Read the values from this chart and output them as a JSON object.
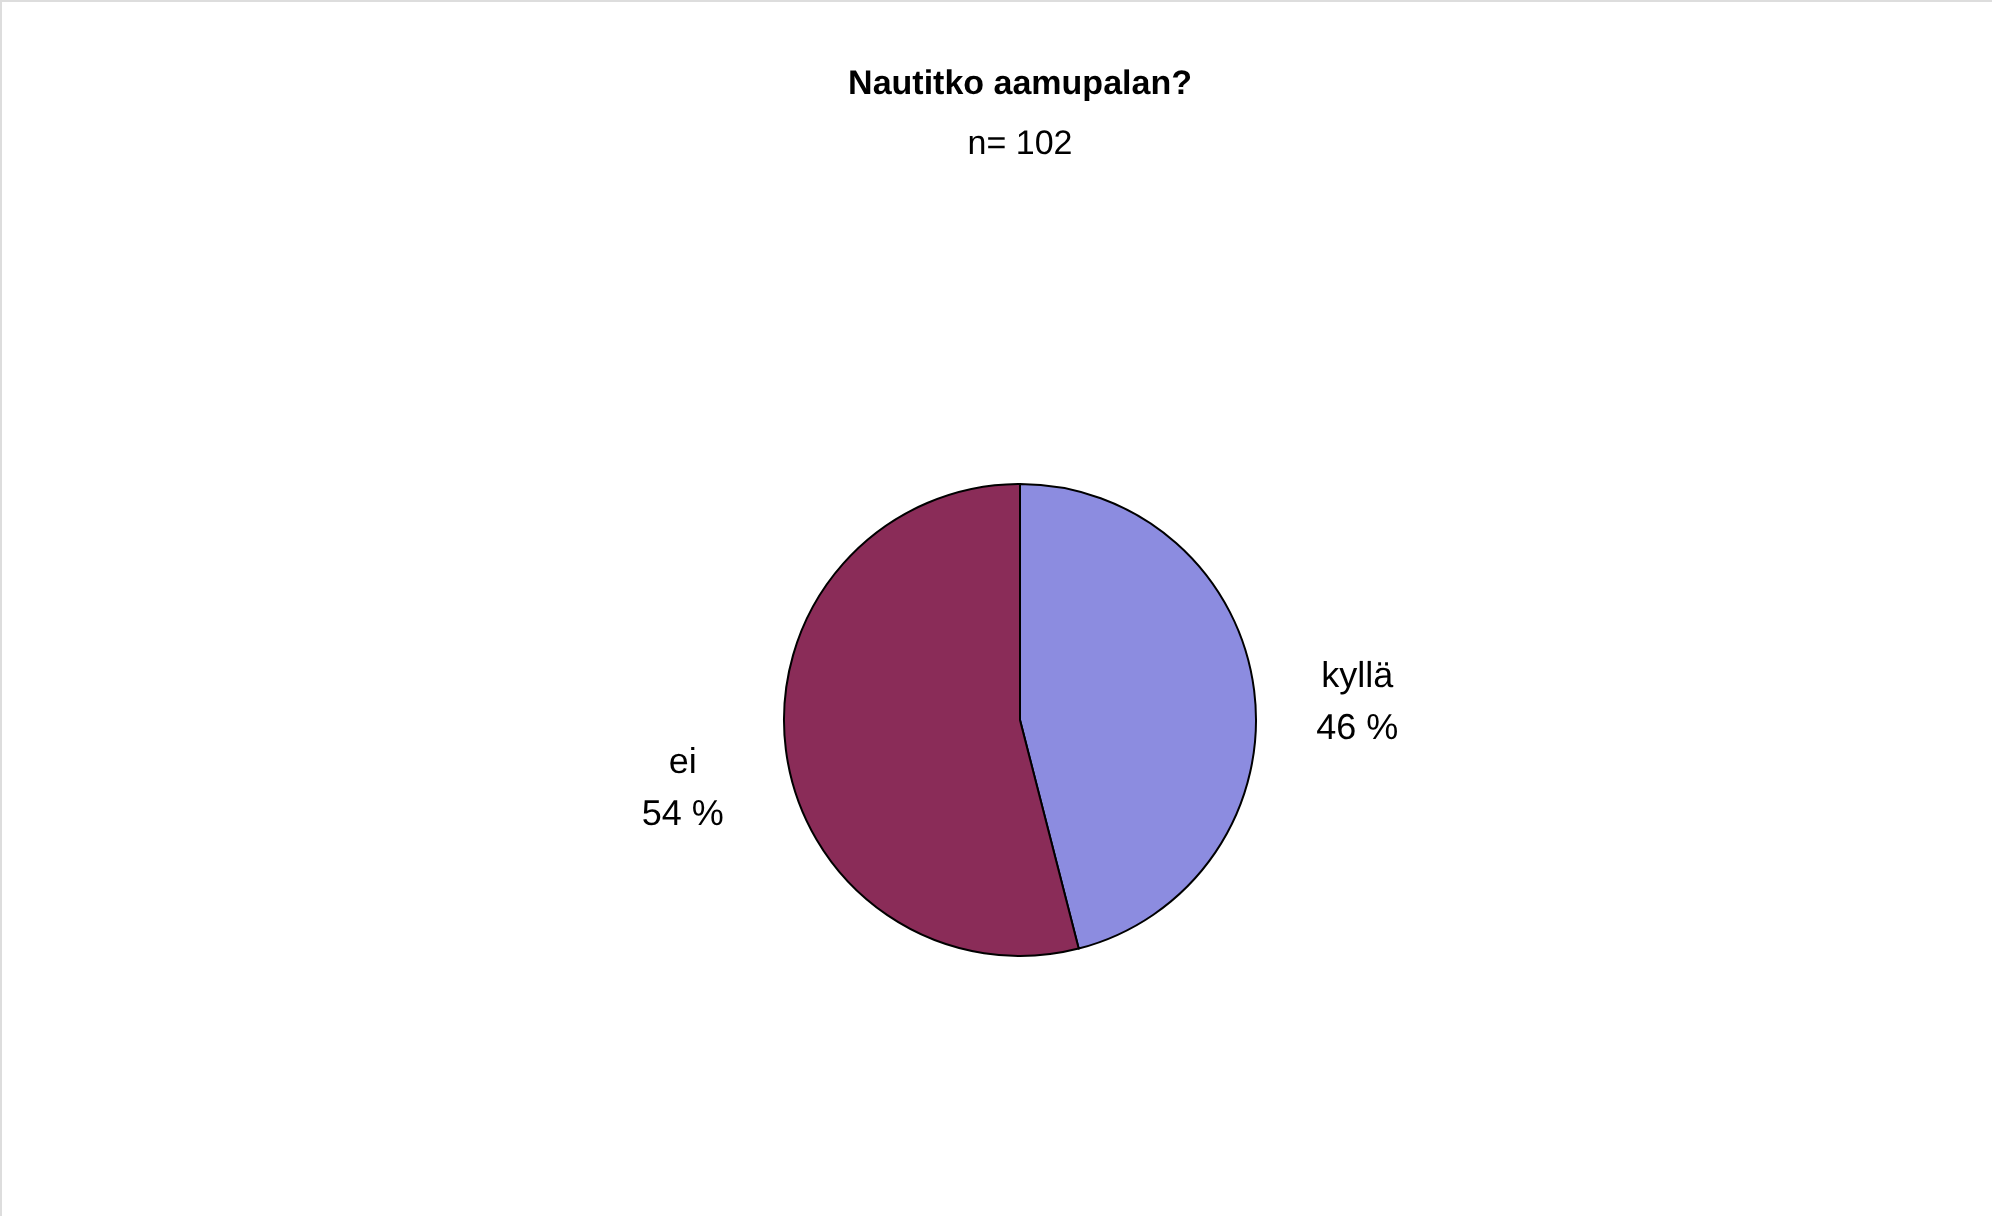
{
  "chart_data": {
    "type": "pie",
    "title": "Nautitko aamupalan?",
    "subtitle": "n= 102",
    "categories": [
      "kyllä",
      "ei"
    ],
    "values": [
      46,
      54
    ],
    "colors": [
      "#8c8ce0",
      "#8a2c58"
    ],
    "value_labels": [
      "46 %",
      "54 %"
    ]
  }
}
